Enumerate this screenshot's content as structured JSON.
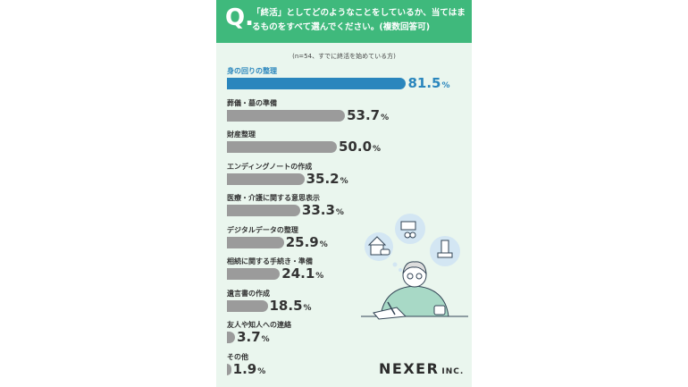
{
  "question": {
    "mark": "Q.",
    "text": "「終活」としてどのようなことをしているか、当てはまるものをすべて選んでください。(複数回答可)"
  },
  "note": "(n=54、すでに終活を始めている方)",
  "chart_data": {
    "type": "bar",
    "orientation": "horizontal",
    "unit": "%",
    "categories": [
      "身の回りの整理",
      "葬儀・墓の準備",
      "財産整理",
      "エンディングノートの作成",
      "医療・介護に関する意思表示",
      "デジタルデータの整理",
      "相続に関する手続き・準備",
      "遺言書の作成",
      "友人や知人への連絡",
      "その他"
    ],
    "values": [
      81.5,
      53.7,
      50.0,
      35.2,
      33.3,
      25.9,
      24.1,
      18.5,
      3.7,
      1.9
    ],
    "value_labels": [
      "81.5",
      "53.7",
      "50.0",
      "35.2",
      "33.3",
      "25.9",
      "24.1",
      "18.5",
      "3.7",
      "1.9"
    ],
    "xlim": [
      0,
      100
    ],
    "highlight_index": 0,
    "colors": {
      "highlight": "#2a86bd",
      "default": "#9b9b9b",
      "accent": "#3fb97c",
      "background": "#eaf6ee"
    }
  },
  "logo": {
    "main": "NEXER",
    "suffix": "INC."
  }
}
